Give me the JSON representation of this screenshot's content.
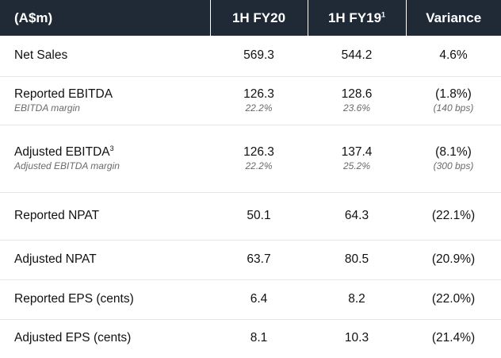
{
  "header": {
    "col0": "(A$m)",
    "col1": "1H FY20",
    "col2": "1H FY19",
    "col2_sup": "1",
    "col3": "Variance"
  },
  "rows": [
    {
      "label": "Net Sales",
      "fy20": "569.3",
      "fy19": "544.2",
      "variance": "4.6%"
    },
    {
      "label": "Reported EBITDA",
      "sublabel": "EBITDA margin",
      "fy20": "126.3",
      "fy20_sub": "22.2%",
      "fy19": "128.6",
      "fy19_sub": "23.6%",
      "variance": "(1.8%)",
      "variance_sub": "(140 bps)"
    },
    {
      "label": "Adjusted EBITDA",
      "label_sup": "3",
      "sublabel": "Adjusted EBITDA margin",
      "fy20": "126.3",
      "fy20_sub": "22.2%",
      "fy19": "137.4",
      "fy19_sub": "25.2%",
      "variance": "(8.1%)",
      "variance_sub": "(300 bps)"
    },
    {
      "label": "Reported NPAT",
      "fy20": "50.1",
      "fy19": "64.3",
      "variance": "(22.1%)"
    },
    {
      "label": "Adjusted NPAT",
      "fy20": "63.7",
      "fy19": "80.5",
      "variance": "(20.9%)"
    },
    {
      "label": "Reported EPS (cents)",
      "fy20": "6.4",
      "fy19": "8.2",
      "variance": "(22.0%)"
    },
    {
      "label": "Adjusted EPS (cents)",
      "fy20": "8.1",
      "fy19": "10.3",
      "variance": "(21.4%)"
    }
  ]
}
